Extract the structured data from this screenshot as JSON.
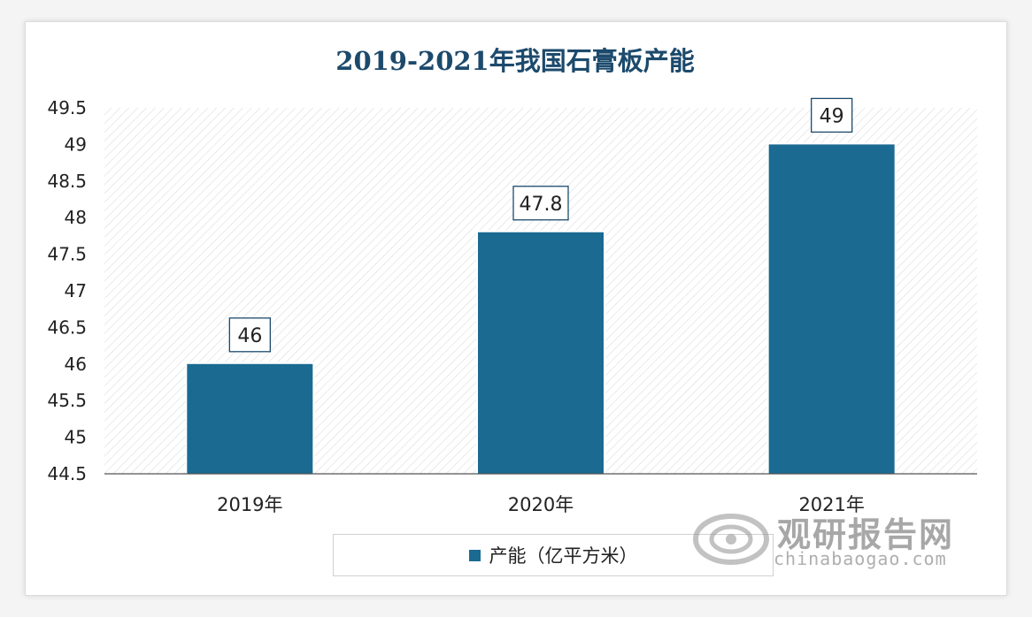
{
  "chart_data": {
    "type": "bar",
    "title": "2019-2021年我国石膏板产能",
    "categories": [
      "2019年",
      "2020年",
      "2021年"
    ],
    "series": [
      {
        "name": "产能（亿平方米）",
        "values": [
          46,
          47.8,
          49
        ]
      }
    ],
    "data_labels": [
      "46",
      "47.8",
      "49"
    ],
    "ylim": [
      44.5,
      49.5
    ],
    "yticks": [
      "44.5",
      "45",
      "45.5",
      "46",
      "46.5",
      "47",
      "47.5",
      "48",
      "48.5",
      "49",
      "49.5"
    ],
    "ytick_values": [
      44.5,
      45,
      45.5,
      46,
      46.5,
      47,
      47.5,
      48,
      48.5,
      49,
      49.5
    ],
    "grid": false,
    "legend_placement": "bottom",
    "colors": {
      "bar": "#1a6a92",
      "title": "#1c4a6c",
      "hatch": "#dcdcdc"
    }
  },
  "watermark": {
    "name_cn": "观研报告网",
    "url": "chinabaogao.com"
  }
}
